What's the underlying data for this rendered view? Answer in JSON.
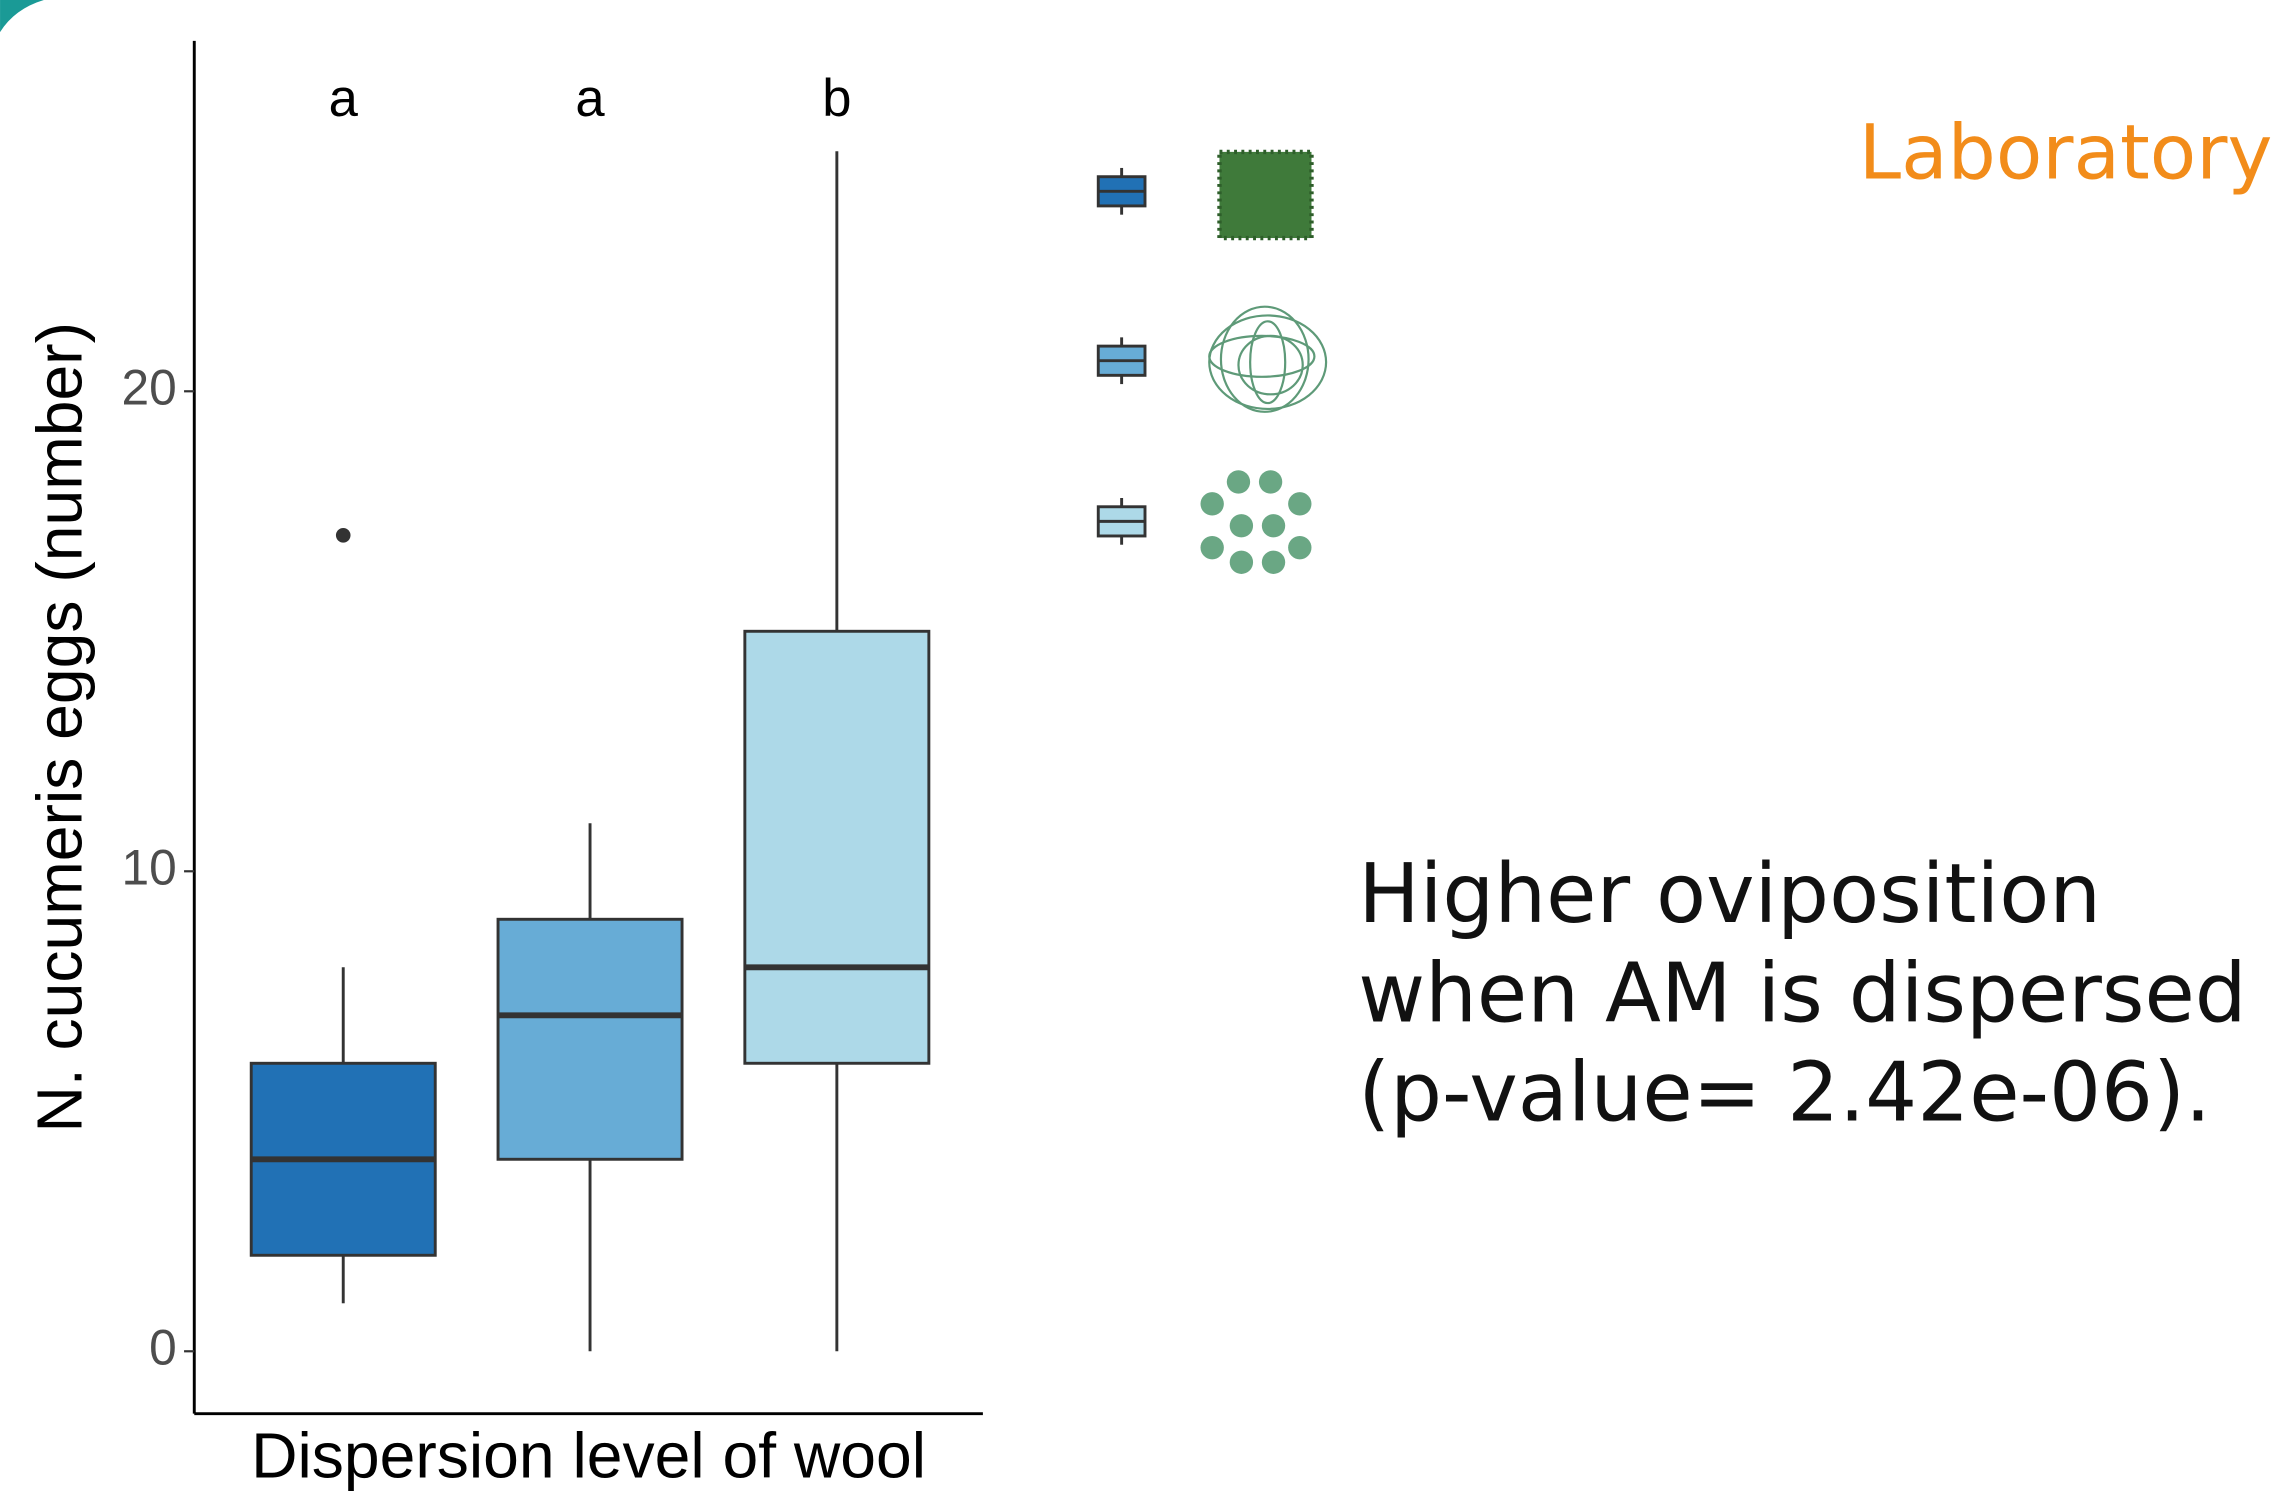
{
  "chart_data": {
    "type": "box",
    "y_label": "N. cucumeris eggs (number)",
    "x_label": "Dispersion level of wool",
    "ylim": [
      -1.3,
      27.3
    ],
    "yticks": [
      0,
      10,
      20
    ],
    "group_letters": [
      "a",
      "a",
      "b"
    ],
    "boxes": [
      {
        "color": "#2171b5",
        "min": 1,
        "q1": 2,
        "median": 4,
        "q3": 6,
        "max": 8,
        "outliers": [
          17
        ]
      },
      {
        "color": "#67acd6",
        "min": 0,
        "q1": 4,
        "median": 7,
        "q3": 9,
        "max": 11,
        "outliers": []
      },
      {
        "color": "#add9e8",
        "min": 0,
        "q1": 6,
        "median": 8,
        "q3": 15,
        "max": 25,
        "outliers": []
      }
    ]
  },
  "label": "Laboratory",
  "note_lines": [
    "Higher oviposition",
    "when AM is dispersed",
    "(p-value= 2.42e-06)."
  ]
}
